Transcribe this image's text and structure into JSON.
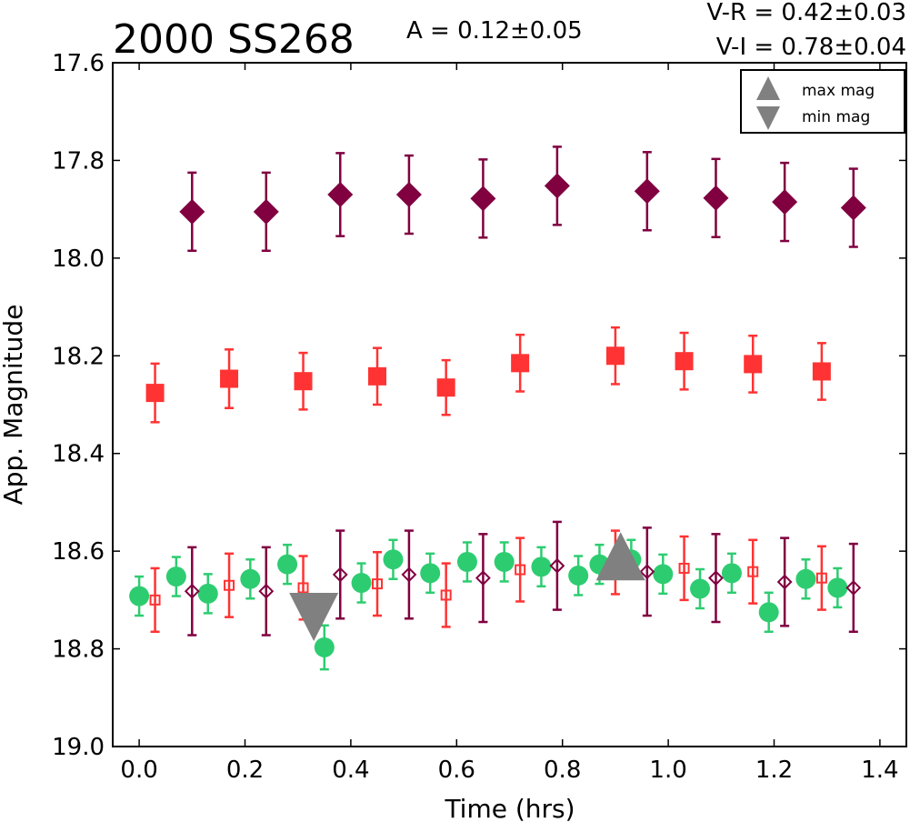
{
  "chart_data": {
    "type": "scatter",
    "title": "2000 SS268",
    "amplitude_text": "A  = 0.12±0.05",
    "color_text": [
      "V-R = 0.42±0.03",
      "V-I  = 0.78±0.04"
    ],
    "xlabel": "Time (hrs)",
    "ylabel": "App. Magnitude",
    "xlim": [
      -0.05,
      1.45
    ],
    "ylim": [
      19.0,
      17.6
    ],
    "y_inverted": true,
    "xticks": [
      "0.0",
      "0.2",
      "0.4",
      "0.6",
      "0.8",
      "1.0",
      "1.2",
      "1.4"
    ],
    "yticks": [
      "17.6",
      "17.8",
      "18.0",
      "18.2",
      "18.4",
      "18.6",
      "18.8",
      "19.0"
    ],
    "grid": false,
    "legend": {
      "position": "top-right",
      "entries": [
        {
          "label": "max mag",
          "marker": "triangle-up",
          "color": "#808080"
        },
        {
          "label": "min mag",
          "marker": "triangle-down",
          "color": "#808080"
        }
      ]
    },
    "colors": {
      "green": "#2ecc71",
      "red": "#ff3333",
      "purple": "#800040",
      "gray": "#808080"
    },
    "series": [
      {
        "marker": "diamond",
        "color": "#800040",
        "filled": true,
        "points": [
          {
            "x": 0.1,
            "y": 17.905,
            "err": 0.08
          },
          {
            "x": 0.24,
            "y": 17.905,
            "err": 0.08
          },
          {
            "x": 0.38,
            "y": 17.87,
            "err": 0.085
          },
          {
            "x": 0.51,
            "y": 17.87,
            "err": 0.08
          },
          {
            "x": 0.65,
            "y": 17.878,
            "err": 0.08
          },
          {
            "x": 0.79,
            "y": 17.852,
            "err": 0.08
          },
          {
            "x": 0.96,
            "y": 17.863,
            "err": 0.08
          },
          {
            "x": 1.09,
            "y": 17.877,
            "err": 0.08
          },
          {
            "x": 1.22,
            "y": 17.885,
            "err": 0.08
          },
          {
            "x": 1.35,
            "y": 17.897,
            "err": 0.08
          }
        ]
      },
      {
        "marker": "square",
        "color": "#ff3333",
        "filled": true,
        "points": [
          {
            "x": 0.03,
            "y": 18.276,
            "err": 0.06
          },
          {
            "x": 0.17,
            "y": 18.247,
            "err": 0.06
          },
          {
            "x": 0.31,
            "y": 18.252,
            "err": 0.058
          },
          {
            "x": 0.45,
            "y": 18.242,
            "err": 0.058
          },
          {
            "x": 0.58,
            "y": 18.265,
            "err": 0.056
          },
          {
            "x": 0.72,
            "y": 18.215,
            "err": 0.058
          },
          {
            "x": 0.9,
            "y": 18.2,
            "err": 0.058
          },
          {
            "x": 1.03,
            "y": 18.211,
            "err": 0.058
          },
          {
            "x": 1.16,
            "y": 18.217,
            "err": 0.058
          },
          {
            "x": 1.29,
            "y": 18.232,
            "err": 0.058
          }
        ]
      },
      {
        "marker": "circle",
        "color": "#2ecc71",
        "filled": true,
        "points": [
          {
            "x": 0.0,
            "y": 18.692,
            "err": 0.04
          },
          {
            "x": 0.07,
            "y": 18.652,
            "err": 0.04
          },
          {
            "x": 0.13,
            "y": 18.687,
            "err": 0.04
          },
          {
            "x": 0.21,
            "y": 18.657,
            "err": 0.04
          },
          {
            "x": 0.28,
            "y": 18.627,
            "err": 0.04
          },
          {
            "x": 0.35,
            "y": 18.797,
            "err": 0.045
          },
          {
            "x": 0.42,
            "y": 18.665,
            "err": 0.04
          },
          {
            "x": 0.48,
            "y": 18.617,
            "err": 0.04
          },
          {
            "x": 0.55,
            "y": 18.645,
            "err": 0.04
          },
          {
            "x": 0.62,
            "y": 18.622,
            "err": 0.04
          },
          {
            "x": 0.69,
            "y": 18.622,
            "err": 0.04
          },
          {
            "x": 0.76,
            "y": 18.632,
            "err": 0.04
          },
          {
            "x": 0.83,
            "y": 18.65,
            "err": 0.04
          },
          {
            "x": 0.87,
            "y": 18.627,
            "err": 0.04
          },
          {
            "x": 0.93,
            "y": 18.617,
            "err": 0.04
          },
          {
            "x": 0.99,
            "y": 18.647,
            "err": 0.04
          },
          {
            "x": 1.06,
            "y": 18.677,
            "err": 0.04
          },
          {
            "x": 1.12,
            "y": 18.645,
            "err": 0.04
          },
          {
            "x": 1.19,
            "y": 18.725,
            "err": 0.04
          },
          {
            "x": 1.26,
            "y": 18.657,
            "err": 0.04
          },
          {
            "x": 1.32,
            "y": 18.675,
            "err": 0.04
          }
        ]
      },
      {
        "marker": "square",
        "color": "#ff3333",
        "filled": false,
        "points": [
          {
            "x": 0.03,
            "y": 18.7,
            "err": 0.065
          },
          {
            "x": 0.17,
            "y": 18.67,
            "err": 0.065
          },
          {
            "x": 0.31,
            "y": 18.675,
            "err": 0.065
          },
          {
            "x": 0.45,
            "y": 18.667,
            "err": 0.065
          },
          {
            "x": 0.58,
            "y": 18.69,
            "err": 0.065
          },
          {
            "x": 0.72,
            "y": 18.638,
            "err": 0.065
          },
          {
            "x": 0.9,
            "y": 18.623,
            "err": 0.065
          },
          {
            "x": 1.03,
            "y": 18.635,
            "err": 0.065
          },
          {
            "x": 1.16,
            "y": 18.642,
            "err": 0.065
          },
          {
            "x": 1.29,
            "y": 18.655,
            "err": 0.065
          }
        ]
      },
      {
        "marker": "diamond",
        "color": "#800040",
        "filled": false,
        "points": [
          {
            "x": 0.1,
            "y": 18.682,
            "err": 0.09
          },
          {
            "x": 0.24,
            "y": 18.682,
            "err": 0.09
          },
          {
            "x": 0.38,
            "y": 18.648,
            "err": 0.09
          },
          {
            "x": 0.51,
            "y": 18.648,
            "err": 0.09
          },
          {
            "x": 0.65,
            "y": 18.655,
            "err": 0.09
          },
          {
            "x": 0.79,
            "y": 18.63,
            "err": 0.09
          },
          {
            "x": 0.96,
            "y": 18.642,
            "err": 0.09
          },
          {
            "x": 1.09,
            "y": 18.655,
            "err": 0.09
          },
          {
            "x": 1.22,
            "y": 18.663,
            "err": 0.09
          },
          {
            "x": 1.35,
            "y": 18.675,
            "err": 0.09
          }
        ]
      }
    ],
    "markers": [
      {
        "type": "min mag",
        "marker": "triangle-down",
        "x": 0.33,
        "y": 18.73,
        "color": "#808080"
      },
      {
        "type": "max mag",
        "marker": "triangle-up",
        "x": 0.91,
        "y": 18.615,
        "color": "#808080"
      }
    ]
  }
}
